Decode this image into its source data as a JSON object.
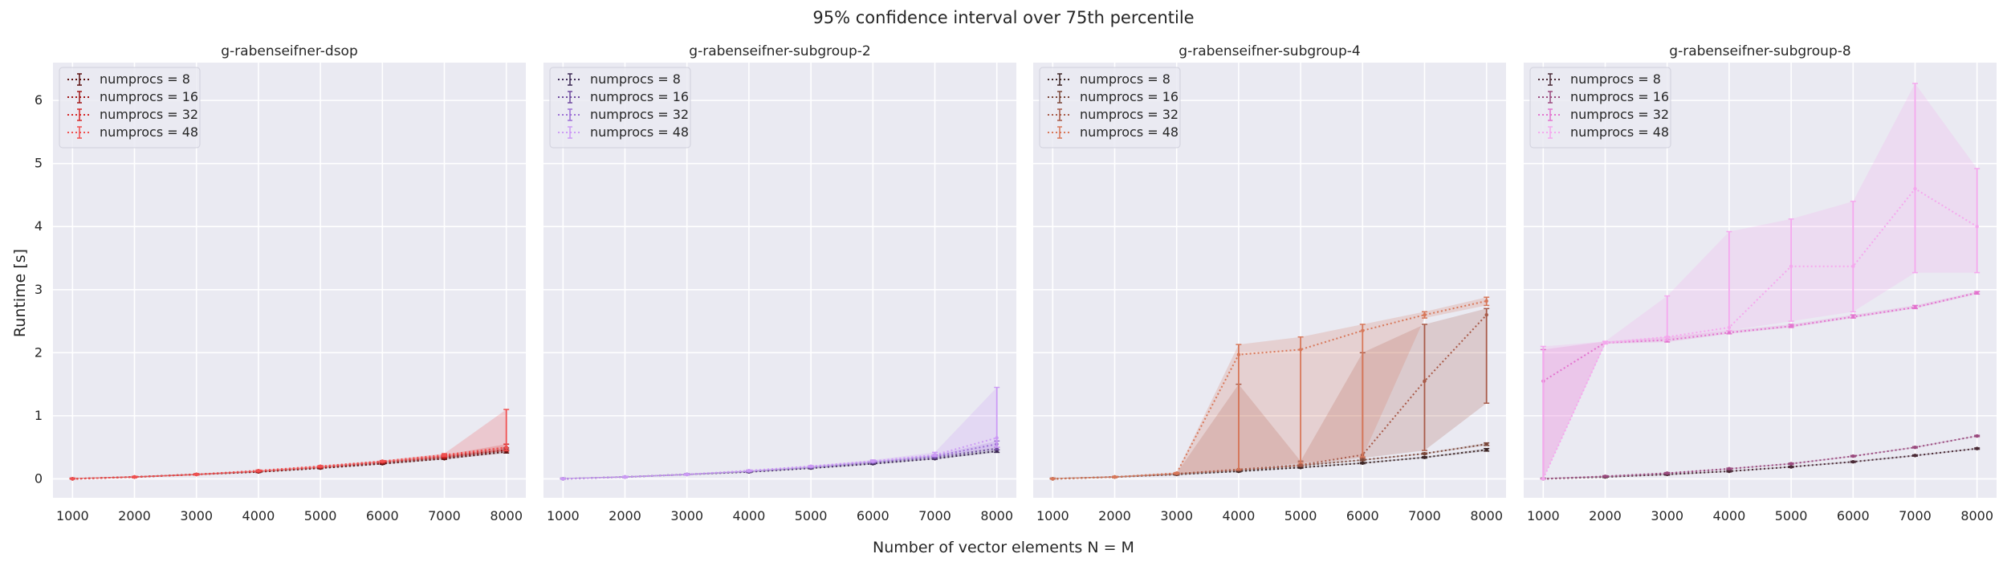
{
  "figure": {
    "title": "95% confidence interval over 75th percentile",
    "xlabel": "Number of vector elements N = M",
    "ylabel": "Runtime [s]"
  },
  "chart_data": [
    {
      "type": "line",
      "title": "g-rabenseifner-dsop",
      "x": [
        1000,
        2000,
        3000,
        4000,
        5000,
        6000,
        7000,
        8000
      ],
      "xticks": [
        1000,
        2000,
        3000,
        4000,
        5000,
        6000,
        7000,
        8000
      ],
      "ylim": [
        -0.3,
        6.6
      ],
      "yticks": [
        0,
        1,
        2,
        3,
        4,
        5,
        6
      ],
      "grid": true,
      "legend": "top-left",
      "series": [
        {
          "name": "numprocs = 8",
          "color": "#5a1010",
          "values": [
            0.0,
            0.03,
            0.07,
            0.11,
            0.17,
            0.24,
            0.32,
            0.43
          ],
          "lower": [
            0.0,
            0.02,
            0.06,
            0.1,
            0.16,
            0.23,
            0.31,
            0.41
          ],
          "upper": [
            0.01,
            0.04,
            0.08,
            0.12,
            0.18,
            0.25,
            0.34,
            0.46
          ]
        },
        {
          "name": "numprocs = 16",
          "color": "#a01818",
          "values": [
            0.0,
            0.03,
            0.07,
            0.12,
            0.18,
            0.26,
            0.34,
            0.46
          ],
          "lower": [
            0.0,
            0.02,
            0.06,
            0.11,
            0.17,
            0.25,
            0.33,
            0.44
          ],
          "upper": [
            0.01,
            0.04,
            0.08,
            0.13,
            0.19,
            0.27,
            0.36,
            0.49
          ]
        },
        {
          "name": "numprocs = 32",
          "color": "#d62a2a",
          "values": [
            0.0,
            0.03,
            0.07,
            0.12,
            0.19,
            0.27,
            0.36,
            0.5
          ],
          "lower": [
            0.0,
            0.02,
            0.06,
            0.11,
            0.18,
            0.26,
            0.34,
            0.45
          ],
          "upper": [
            0.01,
            0.04,
            0.08,
            0.13,
            0.2,
            0.28,
            0.38,
            0.55
          ]
        },
        {
          "name": "numprocs = 48",
          "color": "#f05050",
          "values": [
            0.0,
            0.03,
            0.07,
            0.13,
            0.2,
            0.28,
            0.38,
            0.5
          ],
          "lower": [
            0.0,
            0.02,
            0.06,
            0.12,
            0.19,
            0.27,
            0.36,
            0.45
          ],
          "upper": [
            0.01,
            0.04,
            0.08,
            0.14,
            0.21,
            0.29,
            0.4,
            1.1
          ]
        }
      ]
    },
    {
      "type": "line",
      "title": "g-rabenseifner-subgroup-2",
      "x": [
        1000,
        2000,
        3000,
        4000,
        5000,
        6000,
        7000,
        8000
      ],
      "xticks": [
        1000,
        2000,
        3000,
        4000,
        5000,
        6000,
        7000,
        8000
      ],
      "ylim": [
        -0.3,
        6.6
      ],
      "yticks": [
        0,
        1,
        2,
        3,
        4,
        5,
        6
      ],
      "grid": true,
      "legend": "top-left",
      "series": [
        {
          "name": "numprocs = 8",
          "color": "#3d2a55",
          "values": [
            0.0,
            0.03,
            0.07,
            0.11,
            0.17,
            0.24,
            0.32,
            0.44
          ],
          "lower": [
            0.0,
            0.02,
            0.06,
            0.1,
            0.16,
            0.23,
            0.31,
            0.42
          ],
          "upper": [
            0.01,
            0.04,
            0.08,
            0.12,
            0.18,
            0.25,
            0.33,
            0.46
          ]
        },
        {
          "name": "numprocs = 16",
          "color": "#6e4a9e",
          "values": [
            0.0,
            0.03,
            0.07,
            0.12,
            0.18,
            0.26,
            0.34,
            0.48
          ],
          "lower": [
            0.0,
            0.02,
            0.06,
            0.11,
            0.17,
            0.25,
            0.33,
            0.46
          ],
          "upper": [
            0.01,
            0.04,
            0.08,
            0.13,
            0.19,
            0.27,
            0.36,
            0.5
          ]
        },
        {
          "name": "numprocs = 32",
          "color": "#9d70d6",
          "values": [
            0.0,
            0.03,
            0.07,
            0.12,
            0.19,
            0.27,
            0.36,
            0.55
          ],
          "lower": [
            0.0,
            0.02,
            0.06,
            0.11,
            0.18,
            0.26,
            0.35,
            0.5
          ],
          "upper": [
            0.01,
            0.04,
            0.08,
            0.13,
            0.2,
            0.28,
            0.38,
            0.6
          ]
        },
        {
          "name": "numprocs = 48",
          "color": "#cc9af5",
          "values": [
            0.0,
            0.03,
            0.07,
            0.13,
            0.2,
            0.28,
            0.38,
            0.65
          ],
          "lower": [
            0.0,
            0.02,
            0.06,
            0.12,
            0.19,
            0.27,
            0.36,
            0.5
          ],
          "upper": [
            0.01,
            0.04,
            0.08,
            0.14,
            0.21,
            0.3,
            0.42,
            1.45
          ]
        }
      ]
    },
    {
      "type": "line",
      "title": "g-rabenseifner-subgroup-4",
      "x": [
        1000,
        2000,
        3000,
        4000,
        5000,
        6000,
        7000,
        8000
      ],
      "xticks": [
        1000,
        2000,
        3000,
        4000,
        5000,
        6000,
        7000,
        8000
      ],
      "ylim": [
        -0.3,
        6.6
      ],
      "yticks": [
        0,
        1,
        2,
        3,
        4,
        5,
        6
      ],
      "grid": true,
      "legend": "top-left",
      "series": [
        {
          "name": "numprocs = 8",
          "color": "#3d2626",
          "values": [
            0.0,
            0.03,
            0.07,
            0.12,
            0.18,
            0.25,
            0.34,
            0.46
          ],
          "lower": [
            0.0,
            0.02,
            0.06,
            0.11,
            0.17,
            0.24,
            0.33,
            0.44
          ],
          "upper": [
            0.01,
            0.04,
            0.08,
            0.13,
            0.19,
            0.26,
            0.35,
            0.48
          ]
        },
        {
          "name": "numprocs = 16",
          "color": "#7a4638",
          "values": [
            0.0,
            0.03,
            0.08,
            0.14,
            0.21,
            0.3,
            0.4,
            0.55
          ],
          "lower": [
            0.0,
            0.02,
            0.07,
            0.13,
            0.2,
            0.29,
            0.39,
            0.53
          ],
          "upper": [
            0.01,
            0.04,
            0.09,
            0.15,
            0.22,
            0.31,
            0.41,
            0.57
          ]
        },
        {
          "name": "numprocs = 32",
          "color": "#a85a48",
          "values": [
            0.0,
            0.03,
            0.08,
            0.15,
            0.22,
            0.38,
            1.55,
            2.6
          ],
          "lower": [
            0.0,
            0.02,
            0.07,
            0.13,
            0.2,
            0.33,
            0.45,
            1.2
          ],
          "upper": [
            0.01,
            0.04,
            0.09,
            1.5,
            0.28,
            2.0,
            2.45,
            2.7
          ]
        },
        {
          "name": "numprocs = 48",
          "color": "#d8785a",
          "values": [
            0.0,
            0.03,
            0.09,
            1.97,
            2.05,
            2.35,
            2.6,
            2.82
          ],
          "lower": [
            0.0,
            0.02,
            0.08,
            0.15,
            0.25,
            0.35,
            2.55,
            2.75
          ],
          "upper": [
            0.01,
            0.04,
            0.1,
            2.13,
            2.25,
            2.45,
            2.65,
            2.88
          ]
        }
      ]
    },
    {
      "type": "line",
      "title": "g-rabenseifner-subgroup-8",
      "x": [
        1000,
        2000,
        3000,
        4000,
        5000,
        6000,
        7000,
        8000
      ],
      "xticks": [
        1000,
        2000,
        3000,
        4000,
        5000,
        6000,
        7000,
        8000
      ],
      "ylim": [
        -0.3,
        6.6
      ],
      "yticks": [
        0,
        1,
        2,
        3,
        4,
        5,
        6
      ],
      "grid": true,
      "legend": "top-left",
      "series": [
        {
          "name": "numprocs = 8",
          "color": "#4a2a36",
          "values": [
            0.0,
            0.03,
            0.07,
            0.12,
            0.19,
            0.27,
            0.37,
            0.48
          ],
          "lower": [
            0.0,
            0.02,
            0.06,
            0.11,
            0.18,
            0.26,
            0.36,
            0.47
          ],
          "upper": [
            0.01,
            0.04,
            0.08,
            0.13,
            0.2,
            0.28,
            0.38,
            0.49
          ]
        },
        {
          "name": "numprocs = 16",
          "color": "#9a4a7e",
          "values": [
            0.0,
            0.04,
            0.09,
            0.16,
            0.24,
            0.36,
            0.5,
            0.68
          ],
          "lower": [
            0.0,
            0.03,
            0.08,
            0.15,
            0.23,
            0.35,
            0.49,
            0.67
          ],
          "upper": [
            0.01,
            0.05,
            0.1,
            0.17,
            0.25,
            0.37,
            0.51,
            0.69
          ]
        },
        {
          "name": "numprocs = 32",
          "color": "#e374cf",
          "values": [
            1.55,
            2.16,
            2.2,
            2.32,
            2.42,
            2.57,
            2.72,
            2.95
          ],
          "lower": [
            0.0,
            2.14,
            2.17,
            2.3,
            2.4,
            2.55,
            2.7,
            2.93
          ],
          "upper": [
            2.05,
            2.18,
            2.25,
            2.35,
            2.45,
            2.6,
            2.75,
            2.97
          ]
        },
        {
          "name": "numprocs = 48",
          "color": "#f5a8ee",
          "values": [
            0.0,
            2.16,
            2.25,
            2.4,
            3.37,
            3.37,
            4.6,
            4.0
          ],
          "lower": [
            0.0,
            2.14,
            2.2,
            2.35,
            2.5,
            2.65,
            3.27,
            3.27
          ],
          "upper": [
            2.1,
            2.18,
            2.9,
            3.92,
            4.12,
            4.4,
            6.27,
            4.92
          ]
        }
      ]
    }
  ]
}
